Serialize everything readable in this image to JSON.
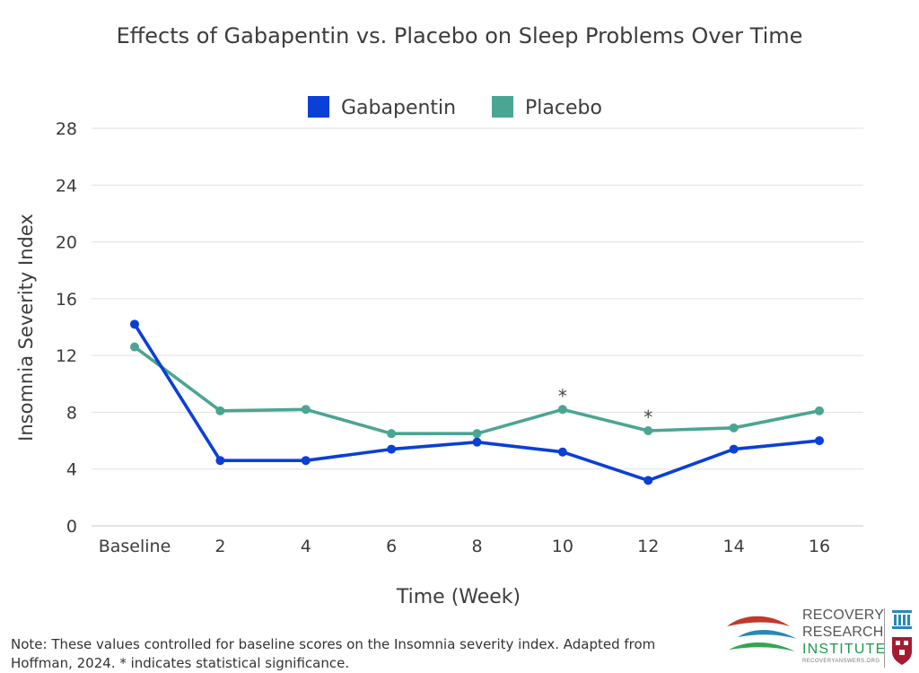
{
  "chart_data": {
    "type": "line",
    "title": "Effects of Gabapentin vs. Placebo on Sleep Problems Over Time",
    "xlabel": "Time (Week)",
    "ylabel": "Insomnia Severity Index",
    "categories": [
      "Baseline",
      "2",
      "4",
      "6",
      "8",
      "10",
      "12",
      "14",
      "16"
    ],
    "ylim": [
      0,
      28
    ],
    "yticks": [
      "0",
      "4",
      "8",
      "12",
      "16",
      "20",
      "24",
      "28"
    ],
    "series": [
      {
        "name": "Gabapentin",
        "color": "#0a3fd8",
        "values": [
          14.2,
          4.6,
          4.6,
          5.4,
          5.9,
          5.2,
          3.2,
          5.4,
          6.0
        ]
      },
      {
        "name": "Placebo",
        "color": "#4ba593",
        "values": [
          12.6,
          8.1,
          8.2,
          6.5,
          6.5,
          8.2,
          6.7,
          6.9,
          8.1
        ]
      }
    ],
    "annotations": [
      {
        "category": "10",
        "series": "Placebo",
        "text": "*"
      },
      {
        "category": "12",
        "series": "Placebo",
        "text": "*"
      }
    ],
    "grid": true,
    "legend": "top-center"
  },
  "note": "Note: These values controlled for baseline scores on the Insomnia severity index. Adapted from Hoffman, 2024. * indicates statistical significance.",
  "logo": {
    "line1": "RECOVERY",
    "line2": "RESEARCH",
    "line3": "INSTITUTE",
    "url": "RECOVERYANSWERS.ORG"
  }
}
